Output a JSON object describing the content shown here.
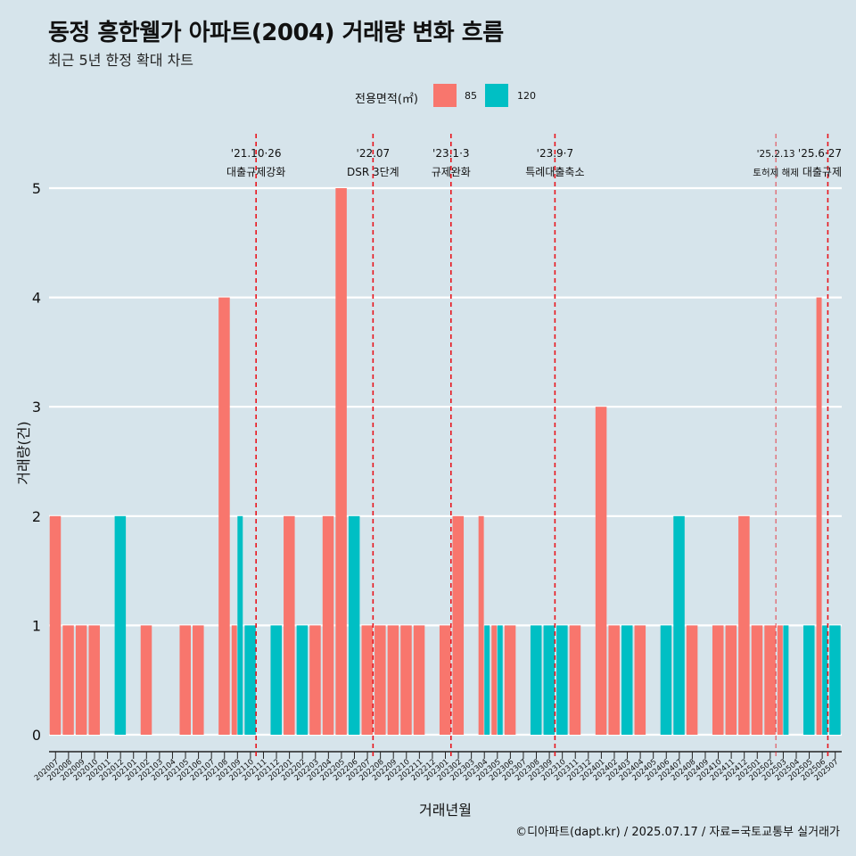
{
  "title": "동정 흥한웰가 아파트(2004) 거래량 변화 흐름",
  "subtitle": "최근 5년 한정 확대 차트",
  "legend": {
    "title": "전용면적(㎡)",
    "items": [
      {
        "label": "85",
        "color": "#f8766d"
      },
      {
        "label": "120",
        "color": "#00bfc4"
      }
    ]
  },
  "caption": "©디아파트(dapt.kr) / 2025.07.17 / 자료=국토교통부 실거래가",
  "chart_data": {
    "type": "bar",
    "xlabel": "거래년월",
    "ylabel": "거래량(건)",
    "ylim": [
      0,
      5
    ],
    "yticks": [
      0,
      1,
      2,
      3,
      4,
      5
    ],
    "categories": [
      "202007",
      "202008",
      "202009",
      "202010",
      "202011",
      "202012",
      "202101",
      "202102",
      "202103",
      "202104",
      "202105",
      "202106",
      "202107",
      "202108",
      "202109",
      "202110",
      "202111",
      "202112",
      "202201",
      "202202",
      "202203",
      "202204",
      "202205",
      "202206",
      "202207",
      "202208",
      "202209",
      "202210",
      "202211",
      "202212",
      "202301",
      "202302",
      "202303",
      "202304",
      "202305",
      "202306",
      "202307",
      "202308",
      "202309",
      "202310",
      "202311",
      "202312",
      "202401",
      "202402",
      "202403",
      "202404",
      "202405",
      "202406",
      "202407",
      "202408",
      "202409",
      "202410",
      "202411",
      "202412",
      "202501",
      "202502",
      "202503",
      "202504",
      "202505",
      "202506",
      "202507"
    ],
    "series": [
      {
        "name": "85",
        "color": "#f8766d",
        "values": [
          2,
          1,
          1,
          1,
          0,
          0,
          0,
          1,
          0,
          0,
          1,
          1,
          0,
          4,
          1,
          0,
          0,
          0,
          2,
          0,
          1,
          2,
          5,
          0,
          1,
          1,
          1,
          1,
          1,
          0,
          1,
          2,
          0,
          2,
          1,
          1,
          0,
          0,
          0,
          0,
          1,
          0,
          3,
          1,
          0,
          1,
          0,
          0,
          0,
          1,
          0,
          1,
          1,
          2,
          1,
          1,
          1,
          0,
          0,
          4,
          0
        ]
      },
      {
        "name": "120",
        "color": "#00bfc4",
        "values": [
          0,
          0,
          0,
          0,
          0,
          2,
          0,
          0,
          0,
          0,
          0,
          0,
          0,
          0,
          2,
          1,
          0,
          1,
          0,
          1,
          0,
          0,
          0,
          2,
          0,
          0,
          0,
          0,
          0,
          0,
          0,
          0,
          0,
          1,
          1,
          0,
          0,
          1,
          1,
          1,
          0,
          0,
          0,
          0,
          1,
          0,
          0,
          1,
          2,
          0,
          0,
          0,
          0,
          0,
          0,
          0,
          1,
          0,
          1,
          1,
          1
        ]
      }
    ],
    "annotations": [
      {
        "date": "'21.10·26",
        "label": "대출규제강화",
        "after_category": "202110",
        "style": "dashed"
      },
      {
        "date": "'22.07",
        "label": "DSR 3단계",
        "after_category": "202207",
        "style": "dashed"
      },
      {
        "date": "'23.1·3",
        "label": "규제완화",
        "after_category": "202301",
        "style": "dashed"
      },
      {
        "date": "'23.9·7",
        "label": "특례대출축소",
        "after_category": "202309",
        "style": "dashed"
      },
      {
        "date": "'25.2.13",
        "label": "토허제 해제",
        "after_category": "202502",
        "style": "thin"
      },
      {
        "date": "'25.6·27",
        "label": "대출규제",
        "after_category": "202506",
        "style": "dashed"
      }
    ],
    "grid": true,
    "legend_position": "top"
  }
}
